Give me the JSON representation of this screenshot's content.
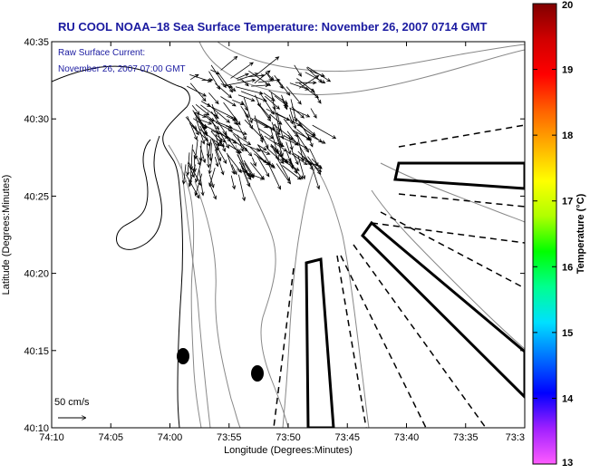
{
  "title": "RU COOL  NOAA–18  Sea Surface Temperature:  November 26, 2007 0714 GMT",
  "current_note": {
    "line1": "Raw Surface Current:",
    "line2": "November 26, 2007 07:00 GMT"
  },
  "axes": {
    "xlabel": "Longitude (Degrees:Minutes)",
    "ylabel": "Latitude (Degrees:Minutes)",
    "xticks": [
      "74:10",
      "74:05",
      "74:00",
      "73:55",
      "73:50",
      "73:45",
      "73:40",
      "73:35",
      "73:3"
    ],
    "yticks": [
      "40:35",
      "40:30",
      "40:25",
      "40:20",
      "40:15",
      "40:10"
    ]
  },
  "scale_label": "50 cm/s",
  "colorbar": {
    "label": "Temperature (°C)",
    "ticks": [
      "20",
      "19",
      "18",
      "17",
      "16",
      "15",
      "14",
      "13"
    ],
    "min": 13,
    "max": 20,
    "colors": [
      "#ff5cff",
      "#a020ff",
      "#0000ff",
      "#0070ff",
      "#00e0ff",
      "#00ff90",
      "#00ff00",
      "#b0ff00",
      "#ffff00",
      "#ffb000",
      "#ff6000",
      "#ff0000",
      "#d00000",
      "#800000"
    ]
  },
  "markers": [
    {
      "name": "buoy-marker-1",
      "lon_min": 58.8,
      "lat_min": 14.7
    },
    {
      "name": "buoy-marker-2",
      "lon_min": 52.2,
      "lat_min": 13.5
    }
  ]
}
